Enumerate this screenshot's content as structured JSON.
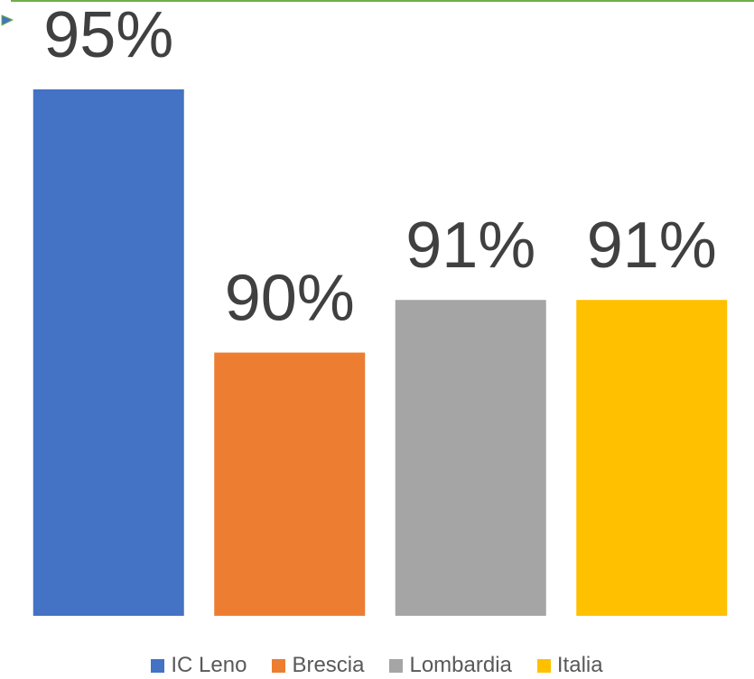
{
  "chart_data": {
    "type": "bar",
    "categories": [
      "IC Leno",
      "Brescia",
      "Lombardia",
      "Italia"
    ],
    "values": [
      95,
      90,
      91,
      91
    ],
    "data_labels": [
      "95%",
      "90%",
      "91%",
      "91%"
    ],
    "colors": [
      "#4472C4",
      "#ED7D31",
      "#A5A5A5",
      "#FFC000"
    ],
    "ylim": [
      85,
      95
    ],
    "grid": false,
    "legend_position": "bottom",
    "frame_color": "#70AD47",
    "label_color": "#404040",
    "legend_text_color": "#595959"
  }
}
